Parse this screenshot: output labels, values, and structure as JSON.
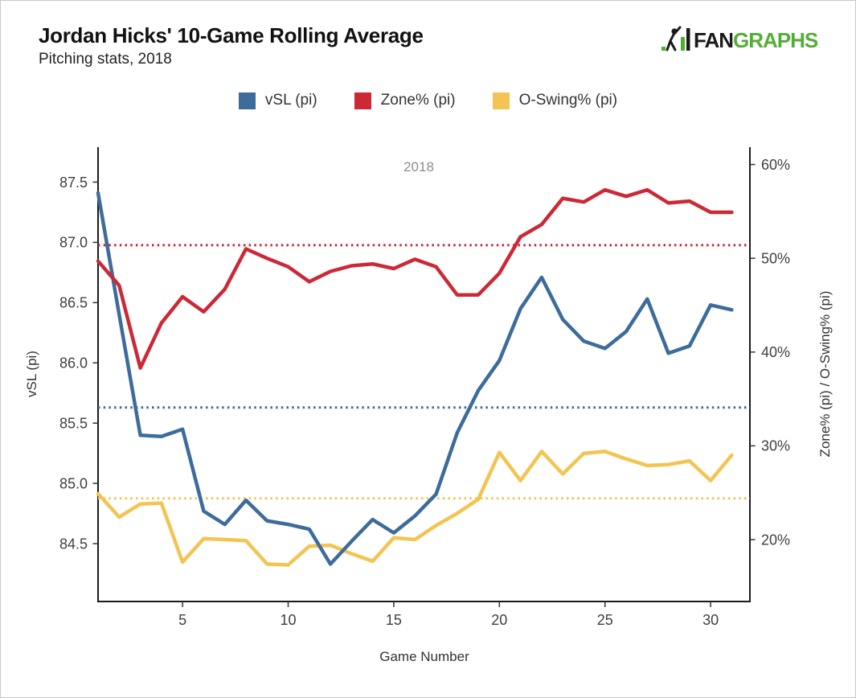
{
  "header": {
    "title": "Jordan Hicks' 10-Game Rolling Average",
    "subtitle": "Pitching stats, 2018"
  },
  "logo": {
    "fan": "FAN",
    "graphs": "GRAPHS",
    "black": "#1a1a1a",
    "green": "#53ad36"
  },
  "chart_data": {
    "type": "line",
    "annotation": "2018",
    "x_axis": {
      "label": "Game Number",
      "ticks": [
        5,
        10,
        15,
        20,
        25,
        30
      ],
      "range": [
        1,
        31.86
      ]
    },
    "left_axis": {
      "label": "vSL (pi)",
      "ticks": [
        87.5,
        87.0,
        86.5,
        86.0,
        85.5,
        85.0,
        84.5
      ],
      "range": [
        84.02,
        87.79
      ]
    },
    "right_axis": {
      "label": "Zone% (pi) / O-Swing% (pi)",
      "ticks": [
        60,
        50,
        40,
        30,
        20
      ],
      "tick_suffix": "%",
      "range": [
        13.4,
        61.85
      ]
    },
    "x": [
      1,
      2,
      3,
      4,
      5,
      6,
      7,
      8,
      9,
      10,
      11,
      12,
      13,
      14,
      15,
      16,
      17,
      18,
      19,
      20,
      21,
      22,
      23,
      24,
      25,
      26,
      27,
      28,
      29,
      30,
      31
    ],
    "series": [
      {
        "name": "vSL (pi)",
        "axis": "left",
        "color": "#3d6c9b",
        "avg_line": 85.63,
        "values": [
          87.41,
          86.4,
          85.4,
          85.39,
          85.45,
          84.77,
          84.66,
          84.86,
          84.69,
          84.66,
          84.62,
          84.33,
          84.52,
          84.7,
          84.59,
          84.73,
          84.91,
          85.42,
          85.77,
          86.02,
          86.45,
          86.71,
          86.36,
          86.18,
          86.12,
          86.26,
          86.53,
          86.08,
          86.14,
          86.48,
          86.44
        ]
      },
      {
        "name": "Zone% (pi)",
        "axis": "right",
        "color": "#cd2836",
        "avg_line": 51.4,
        "values": [
          49.7,
          47.1,
          38.3,
          43.1,
          45.9,
          44.3,
          46.7,
          51.0,
          50.0,
          49.1,
          47.5,
          48.6,
          49.2,
          49.4,
          48.9,
          49.9,
          49.1,
          46.1,
          46.1,
          48.4,
          52.3,
          53.6,
          56.4,
          56.0,
          57.3,
          56.6,
          57.3,
          55.9,
          56.1,
          54.9,
          54.9
        ]
      },
      {
        "name": "O-Swing% (pi)",
        "axis": "right",
        "color": "#f3c451",
        "avg_line": 24.4,
        "values": [
          24.9,
          22.4,
          23.8,
          23.9,
          17.6,
          20.1,
          20.0,
          19.9,
          17.4,
          17.3,
          19.3,
          19.4,
          18.5,
          17.7,
          20.2,
          20.0,
          21.5,
          22.8,
          24.3,
          29.3,
          26.3,
          29.4,
          27.0,
          29.2,
          29.4,
          28.6,
          27.9,
          28.0,
          28.4,
          26.3,
          29.0
        ]
      }
    ],
    "grid": false,
    "legend_position": "top"
  }
}
